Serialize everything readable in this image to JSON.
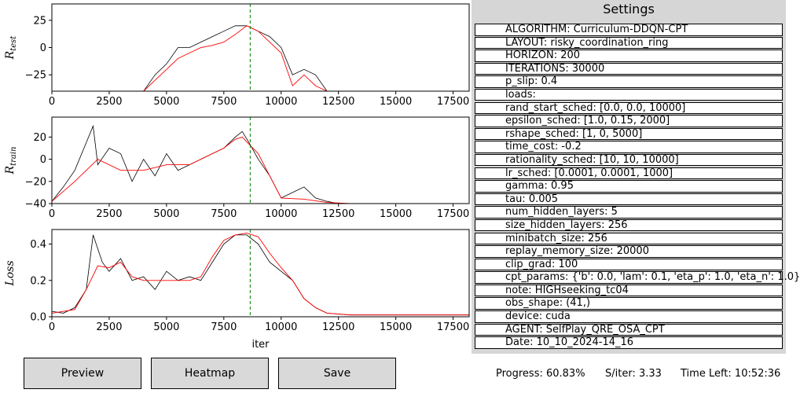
{
  "chart_data": [
    {
      "type": "line",
      "ylabel": "R_test",
      "xlim": [
        0,
        18200
      ],
      "ylim": [
        -40,
        40
      ],
      "xticks": [
        0,
        2500,
        5000,
        7500,
        10000,
        12500,
        15000,
        17500
      ],
      "yticks": [
        -25,
        0,
        25
      ],
      "vline": 8650,
      "series": [
        {
          "role": "raw",
          "color": "#000000",
          "x": [
            0,
            1500,
            2000,
            3000,
            4000,
            4500,
            5000,
            5500,
            6000,
            6500,
            7000,
            7500,
            8000,
            8500,
            9000,
            9500,
            10000,
            10500,
            11000,
            11500,
            12000,
            12500,
            18200
          ],
          "y": [
            -40,
            -40,
            -40,
            -40,
            -40,
            -25,
            -15,
            0,
            0,
            5,
            10,
            15,
            20,
            20,
            15,
            10,
            0,
            -25,
            -20,
            -25,
            -40,
            -40,
            -40
          ]
        },
        {
          "role": "smoothed",
          "color": "#ff0000",
          "x": [
            0,
            4000,
            4500,
            5000,
            5500,
            6000,
            6500,
            7000,
            7500,
            8000,
            8500,
            9000,
            9500,
            10000,
            10500,
            11000,
            11500,
            12000,
            18200
          ],
          "y": [
            -40,
            -40,
            -30,
            -20,
            -10,
            -5,
            0,
            2,
            5,
            12,
            20,
            15,
            5,
            -5,
            -35,
            -25,
            -35,
            -40,
            -40
          ]
        }
      ]
    },
    {
      "type": "line",
      "ylabel": "R_train",
      "xlim": [
        0,
        18200
      ],
      "ylim": [
        -40,
        38
      ],
      "xticks": [
        0,
        2500,
        5000,
        7500,
        10000,
        12500,
        15000,
        17500
      ],
      "yticks": [
        -40,
        -20,
        0,
        20
      ],
      "vline": 8650,
      "series": [
        {
          "role": "raw",
          "color": "#000000",
          "x": [
            0,
            500,
            1000,
            1500,
            1800,
            2000,
            2500,
            3000,
            3500,
            4000,
            4500,
            5000,
            5500,
            6000,
            6500,
            7000,
            7500,
            8000,
            8300,
            8600,
            9000,
            9500,
            10000,
            10500,
            11000,
            11500,
            12000,
            12500,
            13000,
            18200
          ],
          "y": [
            -38,
            -25,
            -10,
            15,
            30,
            -5,
            10,
            5,
            -20,
            0,
            -15,
            5,
            -10,
            -5,
            0,
            5,
            10,
            20,
            25,
            15,
            0,
            -15,
            -35,
            -30,
            -25,
            -35,
            -38,
            -40,
            -40,
            -40
          ]
        },
        {
          "role": "smoothed",
          "color": "#ff0000",
          "x": [
            0,
            1000,
            2000,
            3000,
            4000,
            5000,
            6000,
            7000,
            7500,
            8000,
            8300,
            9000,
            9500,
            10000,
            11000,
            12000,
            13000,
            18200
          ],
          "y": [
            -38,
            -20,
            0,
            -10,
            -10,
            -5,
            -5,
            5,
            10,
            18,
            20,
            5,
            -15,
            -35,
            -36,
            -39,
            -40,
            -40
          ]
        }
      ]
    },
    {
      "type": "line",
      "xlabel": "iter",
      "ylabel": "Loss",
      "xlim": [
        0,
        18200
      ],
      "ylim": [
        0,
        0.48
      ],
      "xticks": [
        0,
        2500,
        5000,
        7500,
        10000,
        12500,
        15000,
        17500
      ],
      "yticks": [
        0.0,
        0.2,
        0.4
      ],
      "vline": 8650,
      "series": [
        {
          "role": "raw",
          "color": "#000000",
          "x": [
            0,
            500,
            1000,
            1500,
            1800,
            2200,
            2500,
            3000,
            3500,
            4000,
            4500,
            5000,
            5500,
            6000,
            6500,
            7000,
            7500,
            8000,
            8500,
            9000,
            9500,
            10000,
            10500,
            11000,
            11500,
            12000,
            13000,
            14000,
            15000,
            16000,
            17000,
            18200
          ],
          "y": [
            0.03,
            0.02,
            0.05,
            0.15,
            0.45,
            0.3,
            0.25,
            0.32,
            0.2,
            0.22,
            0.15,
            0.25,
            0.2,
            0.22,
            0.2,
            0.3,
            0.4,
            0.45,
            0.45,
            0.4,
            0.3,
            0.25,
            0.2,
            0.1,
            0.05,
            0.02,
            0.01,
            0.01,
            0.01,
            0.01,
            0.01,
            0.01
          ]
        },
        {
          "role": "smoothed",
          "color": "#ff0000",
          "x": [
            0,
            1000,
            1500,
            2000,
            2500,
            3000,
            3500,
            4000,
            5000,
            6000,
            6500,
            7000,
            7500,
            8000,
            8500,
            9000,
            9500,
            10000,
            10500,
            11000,
            11500,
            12000,
            13000,
            18200
          ],
          "y": [
            0.02,
            0.04,
            0.15,
            0.28,
            0.27,
            0.3,
            0.22,
            0.2,
            0.2,
            0.2,
            0.22,
            0.33,
            0.42,
            0.45,
            0.46,
            0.44,
            0.35,
            0.27,
            0.2,
            0.1,
            0.05,
            0.02,
            0.01,
            0.01
          ]
        }
      ]
    }
  ],
  "buttons": {
    "preview": "Preview",
    "heatmap": "Heatmap",
    "save": "Save"
  },
  "settings": {
    "title": "Settings",
    "items": [
      "ALGORITHM: Curriculum-DDQN-CPT",
      "LAYOUT: risky_coordination_ring",
      "HORIZON: 200",
      "ITERATIONS: 30000",
      "p_slip: 0.4",
      "loads:",
      "rand_start_sched: [0.0, 0.0, 10000]",
      "epsilon_sched: [1.0, 0.15, 2000]",
      "rshape_sched: [1, 0, 5000]",
      "time_cost: -0.2",
      "rationality_sched: [10, 10, 10000]",
      "lr_sched: [0.0001, 0.0001, 1000]",
      "gamma: 0.95",
      "tau: 0.005",
      "num_hidden_layers: 5",
      "size_hidden_layers: 256",
      "minibatch_size: 256",
      "replay_memory_size: 20000",
      "clip_grad: 100",
      "cpt_params: {'b': 0.0, 'lam': 0.1, 'eta_p': 1.0, 'eta_n': 1.0}",
      "note: HIGHseeking_tc04",
      "obs_shape: (41,)",
      "device: cuda",
      "AGENT: SelfPlay_QRE_OSA_CPT",
      "Date: 10_10_2024-14_16"
    ]
  },
  "status": {
    "progress": "Progress: 60.83%",
    "speed": "S/iter: 3.33",
    "time_left": "Time Left: 10:52:36"
  }
}
